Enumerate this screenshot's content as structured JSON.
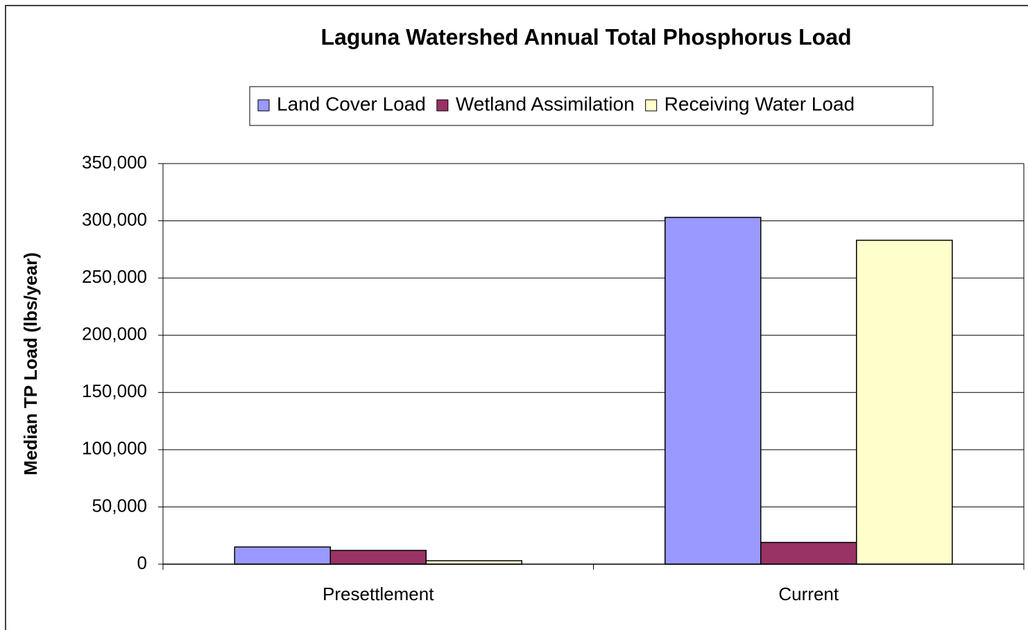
{
  "chart_data": {
    "type": "bar",
    "title": "Laguna Watershed Annual Total Phosphorus Load",
    "y_label": "Median TP Load (lbs/year)",
    "categories": [
      "Presettlement",
      "Current"
    ],
    "series": [
      {
        "name": "Land Cover Load",
        "color": "#9999ff",
        "values": [
          15000,
          303000
        ]
      },
      {
        "name": "Wetland Assimilation",
        "color": "#993366",
        "values": [
          12000,
          19000
        ]
      },
      {
        "name": "Receiving Water Load",
        "color": "#ffffcc",
        "values": [
          3000,
          283000
        ]
      }
    ],
    "ylim": [
      0,
      350000
    ],
    "yticks": [
      0,
      {
        "value": 50000,
        "label": "50,000"
      },
      {
        "value": 100000,
        "label": "100,000"
      },
      {
        "value": 150000,
        "label": "150,000"
      },
      {
        "value": 200000,
        "label": "200,000"
      },
      {
        "value": 250000,
        "label": "250,000"
      },
      {
        "value": 300000,
        "label": "300,000"
      },
      {
        "value": 350000,
        "label": "350,000"
      }
    ],
    "grid": true
  }
}
